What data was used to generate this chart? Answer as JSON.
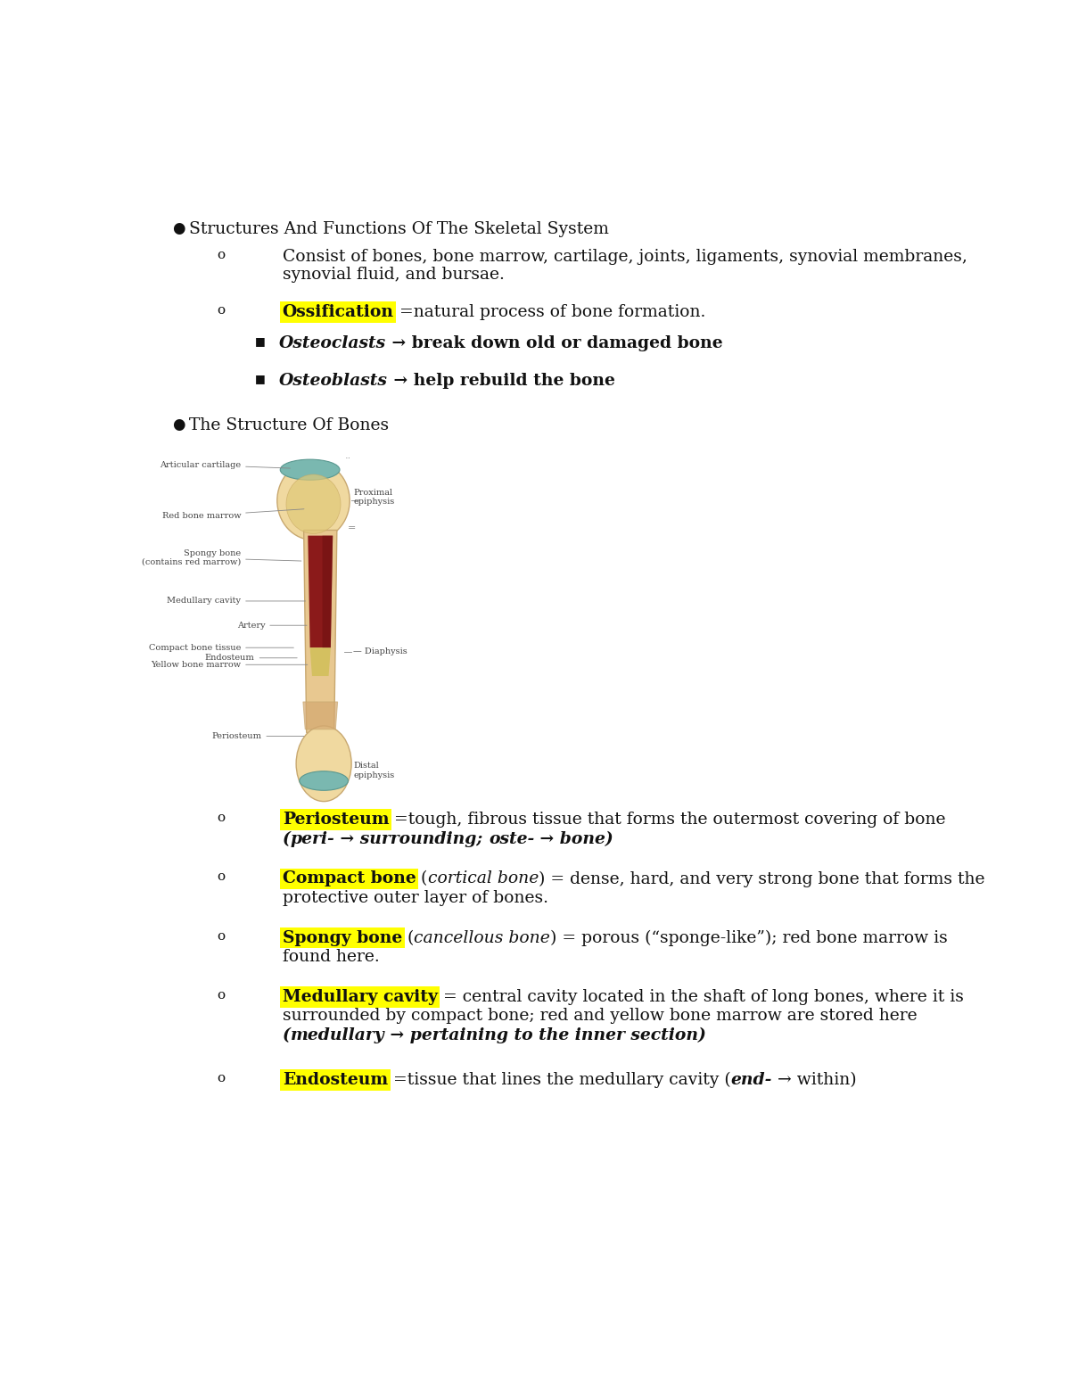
{
  "bg_color": "#ffffff",
  "font_color": "#111111",
  "highlight_color": "#ffff00",
  "figsize": [
    12.0,
    15.53
  ],
  "dpi": 100,
  "bullet1": "Structures And Functions Of The Skeletal System",
  "sub1_line1": "Consist of bones, bone marrow, cartilage, joints, ligaments, synovial membranes,",
  "sub1_line2": "synovial fluid, and bursae.",
  "ossification_highlight": "Ossification",
  "ossification_rest": " =natural process of bone formation.",
  "osteoclasts_italic": "Osteoclasts",
  "osteoclasts_rest": " → break down old or damaged bone",
  "osteoblasts_italic": "Osteoblasts",
  "osteoblasts_rest": " → help rebuild the bone",
  "bullet2": "The Structure Of Bones",
  "periosteum_highlight": "Periosteum",
  "periosteum_rest1": " =tough, fibrous tissue that forms the outermost covering of bone",
  "periosteum_rest2": "(​peri- → surrounding; oste- → bone)",
  "compact_highlight": "Compact bone",
  "compact_italic": "cortical bone",
  "compact_rest2": ") = dense, hard, and very strong bone that forms the",
  "compact_rest3": "protective outer layer of bones.",
  "spongy_highlight": "Spongy bone",
  "spongy_italic": "cancellous bone",
  "spongy_rest2": ") = porous (“sponge-like”); red bone marrow is",
  "spongy_rest3": "found here.",
  "medullary_highlight": "Medullary cavity",
  "medullary_rest1": " = central cavity located in the shaft of long bones, where it is",
  "medullary_rest2": "surrounded by compact bone; red and yellow bone marrow are stored here",
  "medullary_rest3": "(​medullary → pertaining to the inner section)",
  "endosteum_highlight": "Endosteum",
  "endosteum_rest1": " =tissue that lines the medullary cavity (",
  "endosteum_italic": "end-",
  "endosteum_rest2": " → within)",
  "bone_color": "#f0d9a0",
  "bone_edge_color": "#c8a870",
  "red_marrow_color": "#8b1a1a",
  "yellow_marrow_color": "#d4c060",
  "cartilage_color": "#7ab8b0",
  "label_color": "#444444",
  "label_fs": 7.0,
  "shaft_color": "#e8c890"
}
